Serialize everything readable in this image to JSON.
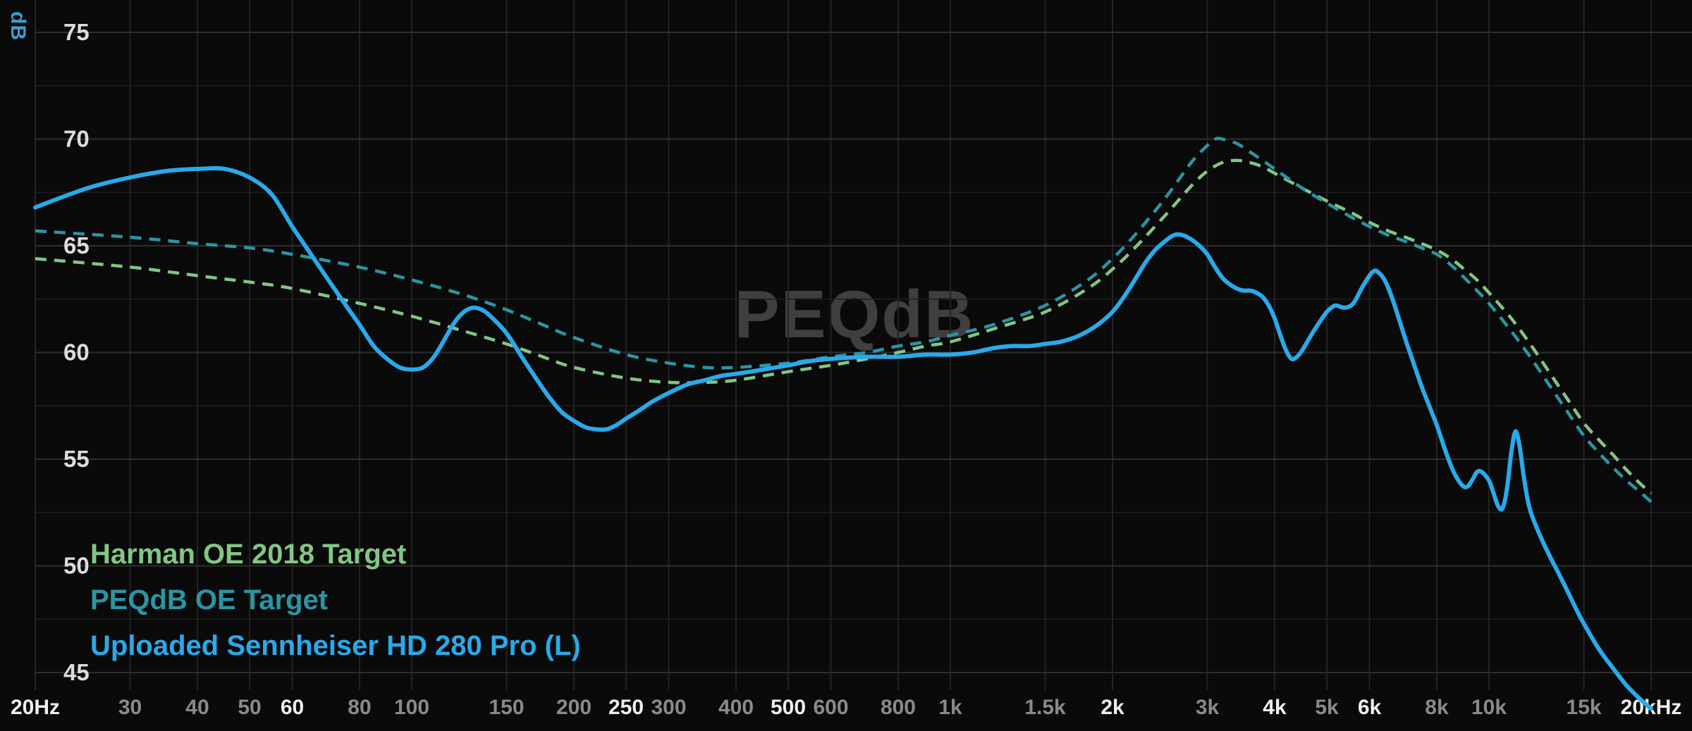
{
  "watermark": {
    "text": "PEQdB",
    "color": "#3f3f3f"
  },
  "axes": {
    "y_unit": "dB",
    "y_unit_color": "#3f9ecd",
    "y_ticks": [
      75,
      70,
      65,
      60,
      55,
      50,
      45
    ],
    "x_ticks": [
      {
        "label": "20Hz",
        "f": 20,
        "emph": true
      },
      {
        "label": "30",
        "f": 30,
        "emph": false
      },
      {
        "label": "40",
        "f": 40,
        "emph": false
      },
      {
        "label": "50",
        "f": 50,
        "emph": false
      },
      {
        "label": "60",
        "f": 60,
        "emph": true
      },
      {
        "label": "80",
        "f": 80,
        "emph": false
      },
      {
        "label": "100",
        "f": 100,
        "emph": false
      },
      {
        "label": "150",
        "f": 150,
        "emph": false
      },
      {
        "label": "200",
        "f": 200,
        "emph": false
      },
      {
        "label": "250",
        "f": 250,
        "emph": true
      },
      {
        "label": "300",
        "f": 300,
        "emph": false
      },
      {
        "label": "400",
        "f": 400,
        "emph": false
      },
      {
        "label": "500",
        "f": 500,
        "emph": true
      },
      {
        "label": "600",
        "f": 600,
        "emph": false
      },
      {
        "label": "800",
        "f": 800,
        "emph": false
      },
      {
        "label": "1k",
        "f": 1000,
        "emph": false
      },
      {
        "label": "1.5k",
        "f": 1500,
        "emph": false
      },
      {
        "label": "2k",
        "f": 2000,
        "emph": true
      },
      {
        "label": "3k",
        "f": 3000,
        "emph": false
      },
      {
        "label": "4k",
        "f": 4000,
        "emph": true
      },
      {
        "label": "5k",
        "f": 5000,
        "emph": false
      },
      {
        "label": "6k",
        "f": 6000,
        "emph": true
      },
      {
        "label": "8k",
        "f": 8000,
        "emph": false
      },
      {
        "label": "10k",
        "f": 10000,
        "emph": false
      },
      {
        "label": "15k",
        "f": 15000,
        "emph": false
      },
      {
        "label": "20kHz",
        "f": 20000,
        "emph": true
      }
    ]
  },
  "legend": [
    {
      "label": "Harman OE 2018 Target",
      "color": "#82c585"
    },
    {
      "label": "PEQdB OE Target",
      "color": "#2b95a3"
    },
    {
      "label": "Uploaded Sennheiser HD 280 Pro (L)",
      "color": "#2aa9ea"
    }
  ],
  "chart_data": {
    "type": "line",
    "x_scale": "log",
    "grid": true,
    "ylabel": "dB",
    "ylim": [
      45,
      75
    ],
    "xlim": [
      20,
      20000
    ],
    "legend_position": "bottom-left",
    "series": [
      {
        "name": "Harman OE 2018 Target",
        "color": "#82c585",
        "style": "dashed",
        "points": [
          [
            20,
            64.4
          ],
          [
            30,
            64.0
          ],
          [
            40,
            63.6
          ],
          [
            50,
            63.3
          ],
          [
            60,
            63.0
          ],
          [
            80,
            62.3
          ],
          [
            100,
            61.7
          ],
          [
            125,
            61.0
          ],
          [
            150,
            60.4
          ],
          [
            175,
            59.8
          ],
          [
            200,
            59.3
          ],
          [
            250,
            58.8
          ],
          [
            300,
            58.6
          ],
          [
            350,
            58.6
          ],
          [
            400,
            58.7
          ],
          [
            500,
            59.1
          ],
          [
            600,
            59.4
          ],
          [
            700,
            59.7
          ],
          [
            800,
            60.0
          ],
          [
            900,
            60.3
          ],
          [
            1000,
            60.5
          ],
          [
            1200,
            61.1
          ],
          [
            1500,
            61.9
          ],
          [
            1800,
            63.0
          ],
          [
            2000,
            63.9
          ],
          [
            2200,
            64.9
          ],
          [
            2500,
            66.4
          ],
          [
            2800,
            67.8
          ],
          [
            3000,
            68.5
          ],
          [
            3200,
            68.9
          ],
          [
            3400,
            69.0
          ],
          [
            3600,
            68.9
          ],
          [
            3800,
            68.7
          ],
          [
            4000,
            68.4
          ],
          [
            4500,
            67.7
          ],
          [
            5000,
            67.1
          ],
          [
            5500,
            66.6
          ],
          [
            6000,
            66.1
          ],
          [
            6500,
            65.7
          ],
          [
            7000,
            65.4
          ],
          [
            7500,
            65.1
          ],
          [
            8000,
            64.8
          ],
          [
            8500,
            64.4
          ],
          [
            9000,
            63.9
          ],
          [
            9500,
            63.4
          ],
          [
            10000,
            62.8
          ],
          [
            11000,
            61.6
          ],
          [
            12000,
            60.3
          ],
          [
            13000,
            59.0
          ],
          [
            14000,
            57.8
          ],
          [
            15000,
            56.7
          ],
          [
            16000,
            55.9
          ],
          [
            17000,
            55.2
          ],
          [
            18000,
            54.5
          ],
          [
            19000,
            53.9
          ],
          [
            20000,
            53.4
          ]
        ]
      },
      {
        "name": "PEQdB OE Target",
        "color": "#2b95a3",
        "style": "dashed",
        "points": [
          [
            20,
            65.7
          ],
          [
            30,
            65.4
          ],
          [
            40,
            65.1
          ],
          [
            50,
            64.9
          ],
          [
            60,
            64.6
          ],
          [
            80,
            64.0
          ],
          [
            100,
            63.4
          ],
          [
            125,
            62.7
          ],
          [
            150,
            62.0
          ],
          [
            175,
            61.3
          ],
          [
            200,
            60.7
          ],
          [
            250,
            59.9
          ],
          [
            300,
            59.5
          ],
          [
            350,
            59.3
          ],
          [
            400,
            59.3
          ],
          [
            500,
            59.5
          ],
          [
            600,
            59.8
          ],
          [
            700,
            60.0
          ],
          [
            800,
            60.3
          ],
          [
            900,
            60.5
          ],
          [
            1000,
            60.8
          ],
          [
            1200,
            61.3
          ],
          [
            1500,
            62.2
          ],
          [
            1800,
            63.4
          ],
          [
            2000,
            64.4
          ],
          [
            2200,
            65.5
          ],
          [
            2500,
            67.2
          ],
          [
            2800,
            68.9
          ],
          [
            3000,
            69.7
          ],
          [
            3100,
            70.0
          ],
          [
            3200,
            70.0
          ],
          [
            3400,
            69.8
          ],
          [
            3600,
            69.4
          ],
          [
            3800,
            69.0
          ],
          [
            4000,
            68.6
          ],
          [
            4500,
            67.7
          ],
          [
            5000,
            67.0
          ],
          [
            5500,
            66.4
          ],
          [
            6000,
            65.9
          ],
          [
            6500,
            65.5
          ],
          [
            7000,
            65.2
          ],
          [
            7500,
            64.9
          ],
          [
            8000,
            64.6
          ],
          [
            8500,
            64.1
          ],
          [
            9000,
            63.5
          ],
          [
            9500,
            62.9
          ],
          [
            10000,
            62.3
          ],
          [
            11000,
            61.0
          ],
          [
            12000,
            59.7
          ],
          [
            13000,
            58.4
          ],
          [
            14000,
            57.2
          ],
          [
            15000,
            56.1
          ],
          [
            16000,
            55.3
          ],
          [
            17000,
            54.6
          ],
          [
            18000,
            54.0
          ],
          [
            19000,
            53.5
          ],
          [
            20000,
            53.0
          ]
        ]
      },
      {
        "name": "Uploaded Sennheiser HD 280 Pro (L)",
        "color": "#2aa9ea",
        "style": "solid",
        "points": [
          [
            20,
            66.8
          ],
          [
            25,
            67.7
          ],
          [
            30,
            68.2
          ],
          [
            35,
            68.5
          ],
          [
            40,
            68.6
          ],
          [
            45,
            68.6
          ],
          [
            50,
            68.2
          ],
          [
            55,
            67.4
          ],
          [
            60,
            65.9
          ],
          [
            65,
            64.6
          ],
          [
            70,
            63.4
          ],
          [
            75,
            62.3
          ],
          [
            80,
            61.3
          ],
          [
            85,
            60.3
          ],
          [
            90,
            59.7
          ],
          [
            95,
            59.3
          ],
          [
            100,
            59.2
          ],
          [
            105,
            59.3
          ],
          [
            110,
            59.8
          ],
          [
            115,
            60.6
          ],
          [
            120,
            61.4
          ],
          [
            125,
            61.9
          ],
          [
            130,
            62.1
          ],
          [
            135,
            62.0
          ],
          [
            140,
            61.7
          ],
          [
            150,
            60.9
          ],
          [
            160,
            59.8
          ],
          [
            170,
            58.8
          ],
          [
            180,
            57.9
          ],
          [
            190,
            57.2
          ],
          [
            200,
            56.8
          ],
          [
            210,
            56.5
          ],
          [
            220,
            56.4
          ],
          [
            230,
            56.4
          ],
          [
            240,
            56.6
          ],
          [
            250,
            56.9
          ],
          [
            265,
            57.3
          ],
          [
            280,
            57.7
          ],
          [
            300,
            58.1
          ],
          [
            325,
            58.5
          ],
          [
            350,
            58.7
          ],
          [
            375,
            58.9
          ],
          [
            400,
            59.0
          ],
          [
            450,
            59.2
          ],
          [
            500,
            59.4
          ],
          [
            550,
            59.6
          ],
          [
            600,
            59.7
          ],
          [
            700,
            59.8
          ],
          [
            800,
            59.8
          ],
          [
            900,
            59.9
          ],
          [
            1000,
            59.9
          ],
          [
            1100,
            60.0
          ],
          [
            1200,
            60.2
          ],
          [
            1300,
            60.3
          ],
          [
            1400,
            60.3
          ],
          [
            1500,
            60.4
          ],
          [
            1600,
            60.5
          ],
          [
            1700,
            60.7
          ],
          [
            1800,
            61.0
          ],
          [
            1900,
            61.4
          ],
          [
            2000,
            61.9
          ],
          [
            2100,
            62.6
          ],
          [
            2200,
            63.4
          ],
          [
            2300,
            64.2
          ],
          [
            2400,
            64.8
          ],
          [
            2500,
            65.2
          ],
          [
            2600,
            65.5
          ],
          [
            2700,
            65.5
          ],
          [
            2800,
            65.3
          ],
          [
            2900,
            65.0
          ],
          [
            3000,
            64.6
          ],
          [
            3100,
            64.0
          ],
          [
            3200,
            63.5
          ],
          [
            3300,
            63.2
          ],
          [
            3400,
            63.0
          ],
          [
            3500,
            62.9
          ],
          [
            3600,
            62.9
          ],
          [
            3700,
            62.8
          ],
          [
            3800,
            62.6
          ],
          [
            3900,
            62.2
          ],
          [
            4000,
            61.6
          ],
          [
            4100,
            60.8
          ],
          [
            4200,
            60.1
          ],
          [
            4300,
            59.7
          ],
          [
            4400,
            59.8
          ],
          [
            4500,
            60.1
          ],
          [
            4700,
            60.9
          ],
          [
            4900,
            61.6
          ],
          [
            5000,
            61.9
          ],
          [
            5100,
            62.1
          ],
          [
            5200,
            62.2
          ],
          [
            5400,
            62.1
          ],
          [
            5600,
            62.3
          ],
          [
            5800,
            63.0
          ],
          [
            6000,
            63.6
          ],
          [
            6100,
            63.8
          ],
          [
            6200,
            63.8
          ],
          [
            6400,
            63.4
          ],
          [
            6600,
            62.6
          ],
          [
            6800,
            61.6
          ],
          [
            7000,
            60.6
          ],
          [
            7200,
            59.7
          ],
          [
            7500,
            58.4
          ],
          [
            7800,
            57.3
          ],
          [
            8000,
            56.6
          ],
          [
            8300,
            55.4
          ],
          [
            8600,
            54.4
          ],
          [
            8900,
            53.8
          ],
          [
            9100,
            53.7
          ],
          [
            9300,
            54.0
          ],
          [
            9500,
            54.4
          ],
          [
            9700,
            54.4
          ],
          [
            10000,
            54.0
          ],
          [
            10200,
            53.4
          ],
          [
            10400,
            52.8
          ],
          [
            10600,
            52.7
          ],
          [
            10800,
            53.6
          ],
          [
            11000,
            55.3
          ],
          [
            11200,
            56.3
          ],
          [
            11400,
            55.6
          ],
          [
            11600,
            54.2
          ],
          [
            11800,
            53.1
          ],
          [
            12000,
            52.4
          ],
          [
            12500,
            51.3
          ],
          [
            13000,
            50.4
          ],
          [
            13500,
            49.6
          ],
          [
            14000,
            48.8
          ],
          [
            14500,
            48.0
          ],
          [
            15000,
            47.3
          ],
          [
            16000,
            46.1
          ],
          [
            17000,
            45.2
          ],
          [
            18000,
            44.4
          ],
          [
            19000,
            43.8
          ],
          [
            20000,
            43.3
          ]
        ]
      }
    ]
  }
}
